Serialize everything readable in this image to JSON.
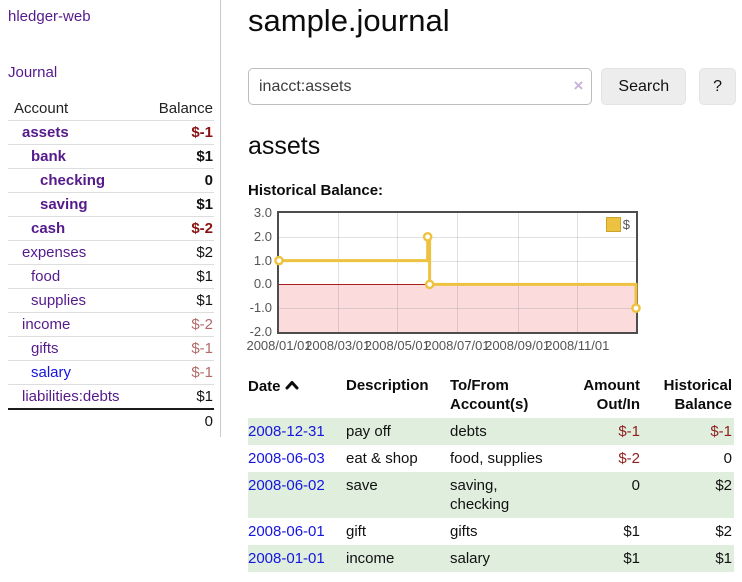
{
  "sidebar": {
    "app_title": "hledger-web",
    "journal_link": "Journal",
    "headers": {
      "account": "Account",
      "balance": "Balance"
    },
    "accounts": [
      {
        "name": "assets",
        "level": 1,
        "selected": true,
        "name_color": "purple",
        "balance": "$-1",
        "value_style": "neg-strong"
      },
      {
        "name": "bank",
        "level": 2,
        "selected": true,
        "name_color": "purple",
        "balance": "$1",
        "value_style": ""
      },
      {
        "name": "checking",
        "level": 3,
        "selected": true,
        "name_color": "purple",
        "balance": "0",
        "value_style": ""
      },
      {
        "name": "saving",
        "level": 3,
        "selected": true,
        "name_color": "purple",
        "balance": "$1",
        "value_style": ""
      },
      {
        "name": "cash",
        "level": 2,
        "selected": true,
        "name_color": "purple",
        "balance": "$-2",
        "value_style": "neg-strong"
      },
      {
        "name": "expenses",
        "level": 1,
        "selected": false,
        "name_color": "purple",
        "balance": "$2",
        "value_style": ""
      },
      {
        "name": "food",
        "level": 2,
        "selected": false,
        "name_color": "purple",
        "balance": "$1",
        "value_style": ""
      },
      {
        "name": "supplies",
        "level": 2,
        "selected": false,
        "name_color": "purple",
        "balance": "$1",
        "value_style": ""
      },
      {
        "name": "income",
        "level": 1,
        "selected": false,
        "name_color": "purple",
        "balance": "$-2",
        "value_style": "neg-soft"
      },
      {
        "name": "gifts",
        "level": 2,
        "selected": false,
        "name_color": "purple",
        "balance": "$-1",
        "value_style": "neg-soft"
      },
      {
        "name": "salary",
        "level": 2,
        "selected": false,
        "name_color": "blue",
        "balance": "$-1",
        "value_style": "neg-soft"
      },
      {
        "name": "liabilities:debts",
        "level": 1,
        "selected": false,
        "name_color": "purple",
        "balance": "$1",
        "value_style": ""
      }
    ],
    "total": "0"
  },
  "main": {
    "title": "sample.journal",
    "search": {
      "value": "inacct:assets",
      "clear_icon": "×",
      "button_label": "Search",
      "help_label": "?"
    },
    "account_heading": "assets",
    "chart_heading": "Historical Balance:"
  },
  "chart_data": {
    "type": "line",
    "title": "Historical Balance",
    "step": true,
    "x": [
      "2008-01-01",
      "2008-06-01",
      "2008-06-03",
      "2008-12-31"
    ],
    "series": [
      {
        "name": "$",
        "values": [
          1,
          2,
          0,
          -1
        ]
      }
    ],
    "x_domain": [
      "2008-01-01",
      "2008-12-31"
    ],
    "x_tick_dates": [
      "2008-01-01",
      "2008-03-01",
      "2008-05-01",
      "2008-07-01",
      "2008-09-01",
      "2008-11-01"
    ],
    "x_tick_labels": [
      "2008/01/01",
      "2008/03/01",
      "2008/05/01",
      "2008/07/01",
      "2008/09/01",
      "2008/11/01"
    ],
    "y_tick_labels": [
      "3.0",
      "2.0",
      "1.0",
      "0.0",
      "-1.0",
      "-2.0"
    ],
    "y_ticks": [
      3,
      2,
      1,
      0,
      -1,
      -2
    ],
    "ylim": [
      -2,
      3
    ],
    "grid": true,
    "legend": [
      {
        "label": "$",
        "color": "#edc240"
      }
    ],
    "legend_position": "top-right",
    "colors": {
      "line": "#edc240",
      "marker_fill": "#ffffff",
      "negative_region": "#fbdbdb",
      "zero_line": "#a61f1f"
    }
  },
  "register": {
    "headers": {
      "date": "Date",
      "description": "Description",
      "tofrom_line1": "To/From",
      "tofrom_line2": "Account(s)",
      "amount_line1": "Amount",
      "amount_line2": "Out/In",
      "balance_line1": "Historical",
      "balance_line2": "Balance"
    },
    "rows": [
      {
        "date": "2008-12-31",
        "description": "pay off",
        "accounts": "debts",
        "amount": "$-1",
        "amount_negative": true,
        "balance": "$-1",
        "balance_negative": true,
        "highlighted": true
      },
      {
        "date": "2008-06-03",
        "description": "eat & shop",
        "accounts": "food, supplies",
        "amount": "$-2",
        "amount_negative": true,
        "balance": "0",
        "balance_negative": false,
        "highlighted": false
      },
      {
        "date": "2008-06-02",
        "description": "save",
        "accounts": "saving, checking",
        "amount": "0",
        "amount_negative": false,
        "balance": "$2",
        "balance_negative": false,
        "highlighted": true
      },
      {
        "date": "2008-06-01",
        "description": "gift",
        "accounts": "gifts",
        "amount": "$1",
        "amount_negative": false,
        "balance": "$2",
        "balance_negative": false,
        "highlighted": false
      },
      {
        "date": "2008-01-01",
        "description": "income",
        "accounts": "salary",
        "amount": "$1",
        "amount_negative": false,
        "balance": "$1",
        "balance_negative": false,
        "highlighted": true
      }
    ]
  },
  "colors": {
    "link_purple": "#551a8b",
    "link_blue": "#1515e0",
    "negative_strong": "#8b1212",
    "negative_soft": "#b26a6a",
    "row_highlight_green": "#dfeedd",
    "chart_line_gold": "#edc240"
  },
  "icons": {
    "clear": "circle-x",
    "sort": "chevron-up",
    "legend_swatch": "square"
  }
}
